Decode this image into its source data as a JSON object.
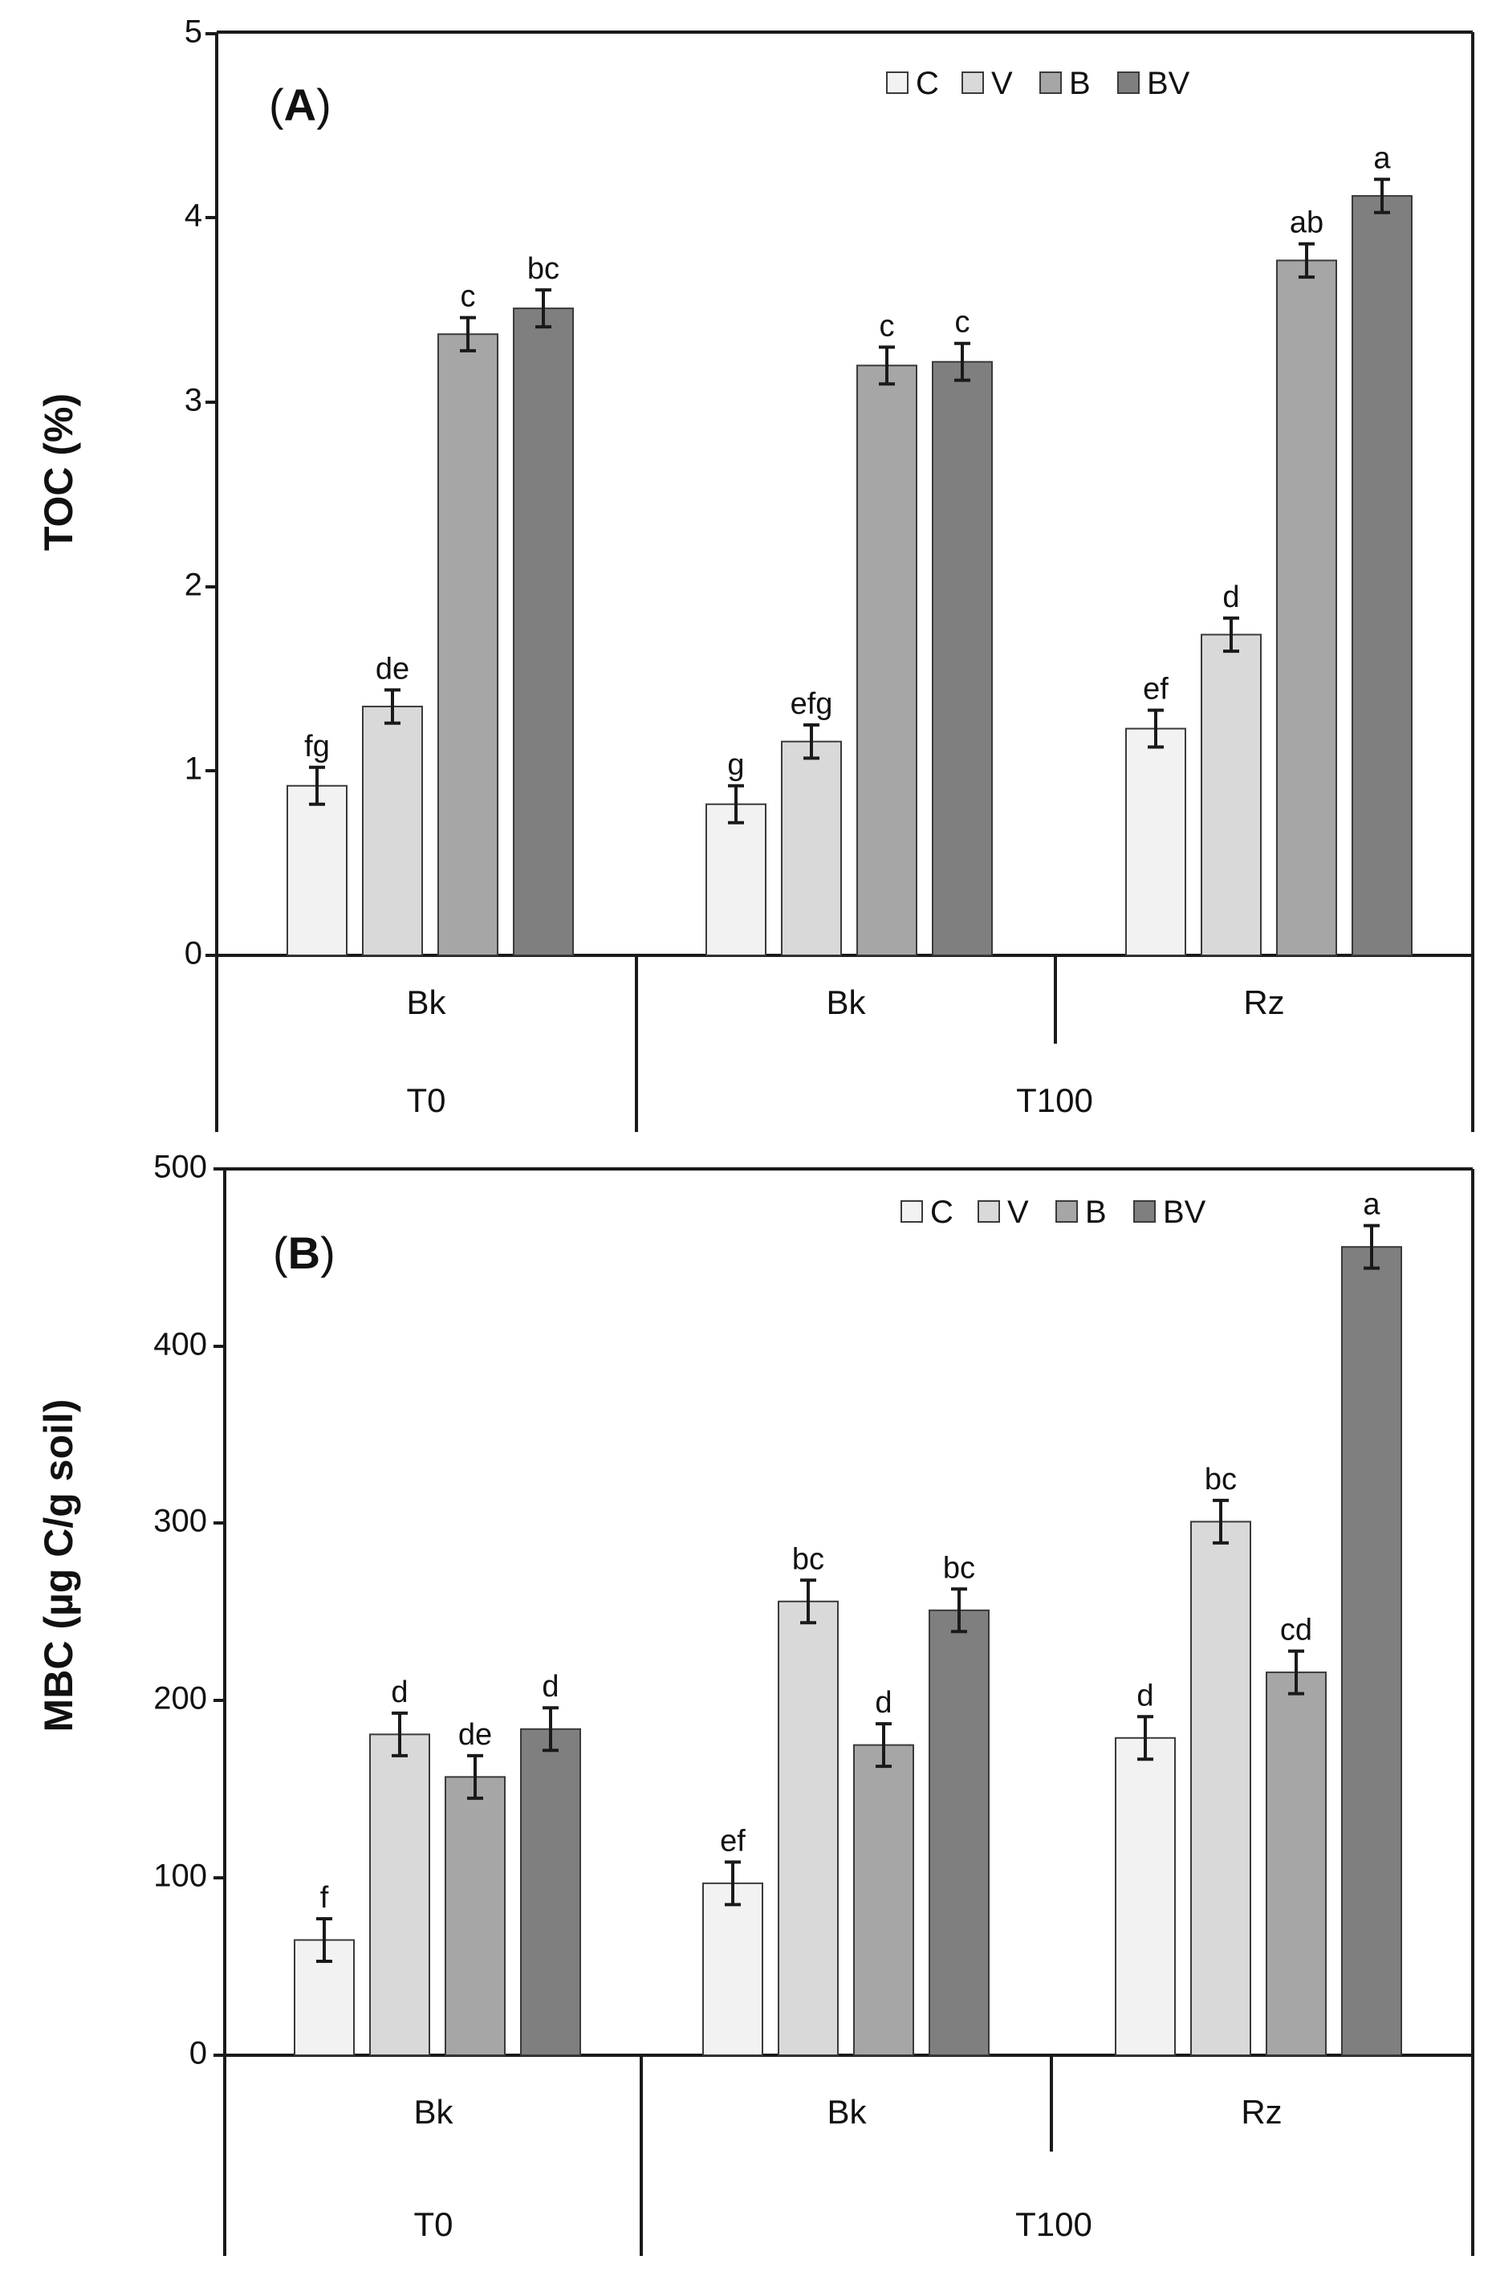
{
  "chart_data": [
    {
      "type": "bar",
      "panel_prefix": "(",
      "panel_letter": "A",
      "panel_suffix": ")",
      "ylabel": "TOC (%)",
      "ylim": [
        0,
        5
      ],
      "yticks": [
        "0",
        "1",
        "2",
        "3",
        "4",
        "5"
      ],
      "legend": [
        "C",
        "V",
        "B",
        "BV"
      ],
      "colors": [
        "#f2f2f2",
        "#d9d9d9",
        "#a6a6a6",
        "#7f7f7f"
      ],
      "categories": [
        "Bk",
        "Bk",
        "Rz"
      ],
      "groups": [
        "T0",
        "T100"
      ],
      "series": [
        {
          "name": "C",
          "values": [
            0.92,
            0.82,
            1.23
          ],
          "errors": [
            0.1,
            0.1,
            0.1
          ],
          "letters": [
            "fg",
            "g",
            "ef"
          ]
        },
        {
          "name": "V",
          "values": [
            1.35,
            1.16,
            1.74
          ],
          "errors": [
            0.09,
            0.09,
            0.09
          ],
          "letters": [
            "de",
            "efg",
            "d"
          ]
        },
        {
          "name": "B",
          "values": [
            3.37,
            3.2,
            3.77
          ],
          "errors": [
            0.09,
            0.1,
            0.09
          ],
          "letters": [
            "c",
            "c",
            "ab"
          ]
        },
        {
          "name": "BV",
          "values": [
            3.51,
            3.22,
            4.12
          ],
          "errors": [
            0.1,
            0.1,
            0.09
          ],
          "letters": [
            "bc",
            "c",
            "a"
          ]
        }
      ]
    },
    {
      "type": "bar",
      "panel_prefix": "(",
      "panel_letter": "B",
      "panel_suffix": ")",
      "ylabel": "MBC (µg C/g soil)",
      "ylim": [
        0,
        500
      ],
      "yticks": [
        "0",
        "100",
        "200",
        "300",
        "400",
        "500"
      ],
      "legend": [
        "C",
        "V",
        "B",
        "BV"
      ],
      "colors": [
        "#f2f2f2",
        "#d9d9d9",
        "#a6a6a6",
        "#7f7f7f"
      ],
      "categories": [
        "Bk",
        "Bk",
        "Rz"
      ],
      "groups": [
        "T0",
        "T100"
      ],
      "series": [
        {
          "name": "C",
          "values": [
            65,
            97,
            179
          ],
          "errors": [
            12,
            12,
            12
          ],
          "letters": [
            "f",
            "ef",
            "d"
          ]
        },
        {
          "name": "V",
          "values": [
            181,
            256,
            301
          ],
          "errors": [
            12,
            12,
            12
          ],
          "letters": [
            "d",
            "bc",
            "bc"
          ]
        },
        {
          "name": "B",
          "values": [
            157,
            175,
            216
          ],
          "errors": [
            12,
            12,
            12
          ],
          "letters": [
            "de",
            "d",
            "cd"
          ]
        },
        {
          "name": "BV",
          "values": [
            184,
            251,
            456
          ],
          "errors": [
            12,
            12,
            12
          ],
          "letters": [
            "d",
            "bc",
            "a"
          ]
        }
      ]
    }
  ]
}
